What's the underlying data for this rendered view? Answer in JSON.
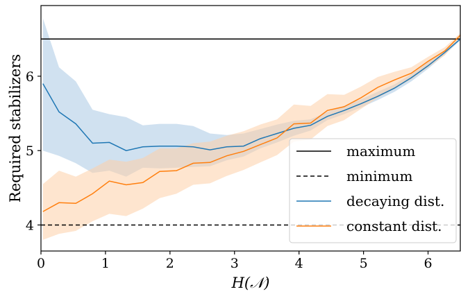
{
  "chart_data": {
    "type": "line",
    "xlabel": "H(𝒩)",
    "ylabel": "Required stabilizers",
    "xlim": [
      0,
      6.5
    ],
    "ylim": [
      3.65,
      6.95
    ],
    "xticks": [
      0,
      1,
      2,
      3,
      4,
      5,
      6
    ],
    "yticks": [
      4,
      5,
      6
    ],
    "grid": false,
    "legend_position": "lower-right",
    "reference_lines": [
      {
        "name": "maximum",
        "y": 6.5,
        "style": "solid",
        "color": "#000000"
      },
      {
        "name": "minimum",
        "y": 4.0,
        "style": "dashed",
        "color": "#000000"
      }
    ],
    "series": [
      {
        "name": "decaying dist.",
        "color": "#1f77b4",
        "band_color": "#a9c8e3",
        "x": [
          0.03,
          0.28,
          0.54,
          0.8,
          1.06,
          1.32,
          1.58,
          1.84,
          2.1,
          2.36,
          2.62,
          2.88,
          3.14,
          3.4,
          3.66,
          3.92,
          4.18,
          4.44,
          4.7,
          4.96,
          5.22,
          5.48,
          5.74,
          6.0,
          6.26,
          6.5
        ],
        "y": [
          5.9,
          5.52,
          5.36,
          5.1,
          5.11,
          5.0,
          5.05,
          5.06,
          5.06,
          5.05,
          5.01,
          5.05,
          5.06,
          5.16,
          5.23,
          5.3,
          5.34,
          5.46,
          5.54,
          5.63,
          5.73,
          5.84,
          5.98,
          6.14,
          6.32,
          6.5
        ],
        "upper": [
          6.78,
          6.12,
          5.93,
          5.55,
          5.49,
          5.45,
          5.34,
          5.36,
          5.36,
          5.33,
          5.23,
          5.21,
          5.23,
          5.29,
          5.35,
          5.4,
          5.42,
          5.52,
          5.6,
          5.69,
          5.79,
          5.89,
          6.03,
          6.19,
          6.35,
          6.52
        ],
        "lower": [
          5.0,
          4.93,
          4.83,
          4.7,
          4.73,
          4.65,
          4.77,
          4.76,
          4.77,
          4.78,
          4.79,
          4.87,
          4.92,
          5.03,
          5.11,
          5.2,
          5.27,
          5.41,
          5.49,
          5.58,
          5.68,
          5.79,
          5.93,
          6.1,
          6.29,
          6.48
        ]
      },
      {
        "name": "constant dist.",
        "color": "#ff7f0e",
        "band_color": "#fdd0a7",
        "x": [
          0.03,
          0.28,
          0.54,
          0.8,
          1.06,
          1.32,
          1.58,
          1.84,
          2.1,
          2.36,
          2.62,
          2.88,
          3.14,
          3.4,
          3.66,
          3.92,
          4.18,
          4.44,
          4.7,
          4.96,
          5.22,
          5.48,
          5.74,
          6.0,
          6.26,
          6.5
        ],
        "y": [
          4.18,
          4.3,
          4.29,
          4.42,
          4.59,
          4.54,
          4.57,
          4.72,
          4.73,
          4.83,
          4.84,
          4.93,
          4.99,
          5.08,
          5.17,
          5.36,
          5.37,
          5.54,
          5.59,
          5.71,
          5.85,
          5.95,
          6.04,
          6.2,
          6.34,
          6.55
        ],
        "upper": [
          4.55,
          4.73,
          4.65,
          4.76,
          4.88,
          4.85,
          4.9,
          5.03,
          5.03,
          5.1,
          5.12,
          5.2,
          5.26,
          5.35,
          5.42,
          5.62,
          5.6,
          5.76,
          5.75,
          5.86,
          5.99,
          6.06,
          6.12,
          6.26,
          6.39,
          6.58
        ],
        "lower": [
          3.8,
          3.88,
          3.92,
          4.05,
          4.15,
          4.12,
          4.22,
          4.36,
          4.42,
          4.54,
          4.56,
          4.66,
          4.74,
          4.84,
          4.94,
          5.12,
          5.15,
          5.33,
          5.41,
          5.56,
          5.71,
          5.83,
          5.96,
          6.12,
          6.28,
          6.52
        ]
      }
    ],
    "legend": [
      "maximum",
      "minimum",
      "decaying dist.",
      "constant dist."
    ]
  }
}
